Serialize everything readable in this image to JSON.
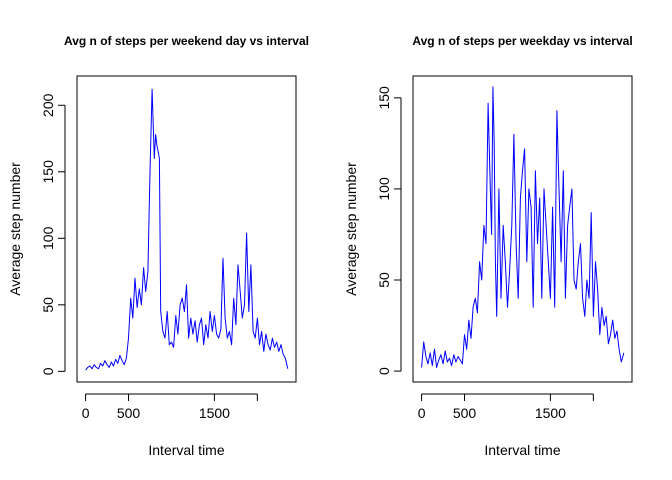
{
  "chart_data": [
    {
      "type": "line",
      "title": "Avg n of steps per weekend day vs interval",
      "xlabel": "Interval time",
      "ylabel": "Average step number",
      "xlim": [
        -100,
        2450
      ],
      "ylim": [
        -8,
        222
      ],
      "xticks": [
        0,
        500,
        1500,
        2000
      ],
      "xtick_labels": [
        "0",
        "500",
        "1500",
        ""
      ],
      "yticks": [
        0,
        50,
        100,
        150,
        200
      ],
      "grid": false,
      "series": [
        {
          "color": "#0000ff",
          "x": [
            0,
            25,
            50,
            75,
            100,
            125,
            150,
            175,
            200,
            225,
            250,
            275,
            300,
            325,
            350,
            375,
            400,
            425,
            450,
            475,
            500,
            525,
            550,
            575,
            600,
            625,
            650,
            675,
            700,
            725,
            750,
            775,
            800,
            815,
            830,
            845,
            860,
            875,
            900,
            925,
            950,
            975,
            1000,
            1025,
            1050,
            1075,
            1100,
            1125,
            1150,
            1175,
            1200,
            1225,
            1250,
            1275,
            1300,
            1325,
            1350,
            1375,
            1400,
            1425,
            1450,
            1475,
            1500,
            1525,
            1550,
            1575,
            1600,
            1625,
            1650,
            1675,
            1700,
            1725,
            1750,
            1775,
            1800,
            1825,
            1850,
            1875,
            1900,
            1925,
            1950,
            1975,
            2000,
            2025,
            2050,
            2075,
            2100,
            2125,
            2150,
            2175,
            2200,
            2225,
            2250,
            2275,
            2300,
            2325,
            2355
          ],
          "y": [
            1,
            3,
            4,
            2,
            5,
            3,
            2,
            6,
            4,
            8,
            5,
            3,
            7,
            4,
            9,
            6,
            12,
            8,
            5,
            10,
            25,
            55,
            40,
            70,
            48,
            62,
            50,
            78,
            60,
            75,
            150,
            212,
            160,
            178,
            170,
            165,
            160,
            45,
            30,
            25,
            45,
            20,
            22,
            18,
            42,
            28,
            50,
            55,
            45,
            65,
            25,
            40,
            28,
            38,
            22,
            35,
            40,
            20,
            35,
            25,
            45,
            30,
            42,
            28,
            25,
            32,
            85,
            40,
            25,
            30,
            20,
            55,
            35,
            80,
            60,
            40,
            50,
            104,
            45,
            80,
            30,
            25,
            40,
            20,
            30,
            15,
            28,
            20,
            16,
            25,
            18,
            22,
            15,
            20,
            13,
            10,
            2
          ]
        }
      ]
    },
    {
      "type": "line",
      "title": "Avg n of steps per weekday vs interval",
      "xlabel": "Interval time",
      "ylabel": "Average step number",
      "xlim": [
        -100,
        2450
      ],
      "ylim": [
        -6,
        162
      ],
      "xticks": [
        0,
        500,
        1500,
        2000
      ],
      "xtick_labels": [
        "0",
        "500",
        "1500",
        ""
      ],
      "yticks": [
        0,
        50,
        100,
        150
      ],
      "grid": false,
      "series": [
        {
          "color": "#0000ff",
          "x": [
            0,
            25,
            50,
            75,
            100,
            125,
            150,
            175,
            200,
            225,
            250,
            275,
            300,
            325,
            350,
            375,
            400,
            425,
            450,
            475,
            500,
            525,
            550,
            575,
            600,
            625,
            650,
            675,
            700,
            725,
            750,
            775,
            800,
            815,
            830,
            845,
            860,
            875,
            900,
            925,
            950,
            975,
            1000,
            1025,
            1050,
            1075,
            1100,
            1125,
            1150,
            1175,
            1200,
            1225,
            1250,
            1275,
            1300,
            1325,
            1350,
            1375,
            1400,
            1425,
            1450,
            1475,
            1500,
            1525,
            1550,
            1575,
            1600,
            1625,
            1650,
            1675,
            1700,
            1725,
            1750,
            1775,
            1800,
            1825,
            1850,
            1875,
            1900,
            1925,
            1950,
            1975,
            2000,
            2025,
            2050,
            2075,
            2100,
            2125,
            2150,
            2175,
            2200,
            2225,
            2250,
            2275,
            2300,
            2325,
            2355
          ],
          "y": [
            2,
            16,
            8,
            4,
            10,
            3,
            12,
            2,
            6,
            9,
            4,
            11,
            5,
            7,
            3,
            9,
            5,
            8,
            6,
            4,
            20,
            12,
            28,
            18,
            35,
            40,
            32,
            60,
            50,
            80,
            70,
            147,
            100,
            75,
            156,
            125,
            60,
            30,
            100,
            40,
            80,
            60,
            35,
            55,
            80,
            130,
            70,
            40,
            95,
            110,
            122,
            60,
            100,
            90,
            35,
            110,
            70,
            95,
            40,
            100,
            80,
            60,
            40,
            90,
            35,
            143,
            100,
            60,
            110,
            40,
            80,
            90,
            100,
            50,
            45,
            60,
            70,
            40,
            30,
            50,
            40,
            87,
            30,
            60,
            45,
            20,
            35,
            25,
            30,
            15,
            20,
            28,
            18,
            22,
            12,
            5,
            10
          ]
        }
      ]
    }
  ]
}
